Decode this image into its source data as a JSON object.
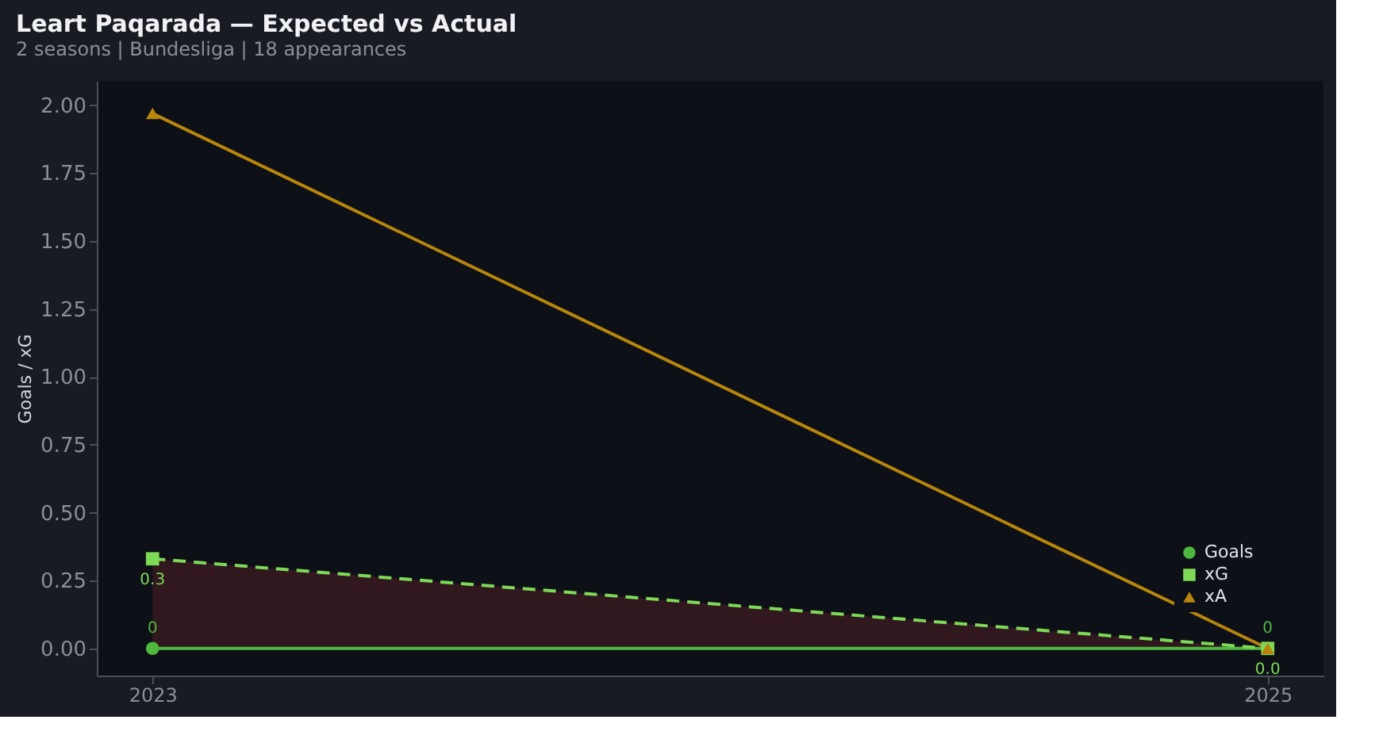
{
  "chart_data": {
    "type": "line",
    "title": "Leart Paqarada — Expected vs Actual",
    "subtitle": "2 seasons | Bundesliga | 18 appearances",
    "ylabel": "Goals / xG",
    "x": [
      2023,
      2025
    ],
    "xlim": [
      2022.9,
      2025.1
    ],
    "xticks": [
      2023,
      2025
    ],
    "ylim": [
      -0.1,
      2.09
    ],
    "yticks": [
      {
        "value": 0,
        "label": "0.00"
      },
      0.25,
      {
        "value": 0.5,
        "label": "0.50"
      },
      0.75,
      {
        "value": 1,
        "label": "1.00"
      },
      1.25,
      {
        "value": 1.5,
        "label": "1.50"
      },
      1.75,
      {
        "value": 2,
        "label": "2.00"
      }
    ],
    "grid": false,
    "legend": "bottom right",
    "series": [
      {
        "name": "Goals",
        "color": "#4fb83f",
        "values": [
          0,
          0
        ],
        "marker": "circle",
        "line_style": "solid",
        "value_labels": [
          "0",
          "0"
        ]
      },
      {
        "name": "xG",
        "color": "#7ed957",
        "values": [
          0.33,
          0.0
        ],
        "marker": "square",
        "line_style": "dashed",
        "value_labels": [
          "0.3",
          "0.0"
        ],
        "lower": [
          0,
          0
        ],
        "upper": [
          0.33,
          0.0
        ]
      },
      {
        "name": "xA",
        "color": "#b8860b",
        "values": [
          1.97,
          0.0
        ],
        "marker": "triangle",
        "line_style": "solid"
      }
    ]
  }
}
